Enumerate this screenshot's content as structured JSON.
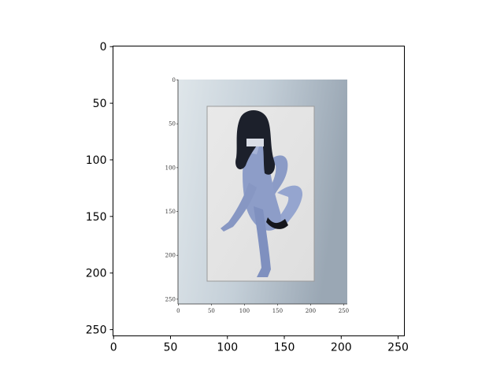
{
  "chart_data": {
    "type": "image",
    "title": "",
    "xlabel": "",
    "ylabel": "",
    "x_ticks": [
      "0",
      "50",
      "100",
      "150",
      "200",
      "250"
    ],
    "y_ticks": [
      "0",
      "50",
      "100",
      "150",
      "200",
      "250"
    ],
    "xlim": [
      -0.5,
      255.5
    ],
    "ylim": [
      255.5,
      -0.5
    ],
    "embedded_image": {
      "description": "photo of a figure posed on a light panel",
      "x_ticks": [
        "0",
        "50",
        "100",
        "150",
        "200",
        "250"
      ],
      "y_ticks": [
        "0",
        "50",
        "100",
        "150",
        "200",
        "250"
      ],
      "xlim": [
        -0.5,
        255.5
      ],
      "ylim": [
        255.5,
        -0.5
      ]
    },
    "grid": false,
    "colors": {
      "frame_background": "#c9d4dc",
      "panel": "#e2e2e2",
      "silhouette_skin": "#8f9fc9",
      "hair": "#1b1f2a"
    }
  }
}
